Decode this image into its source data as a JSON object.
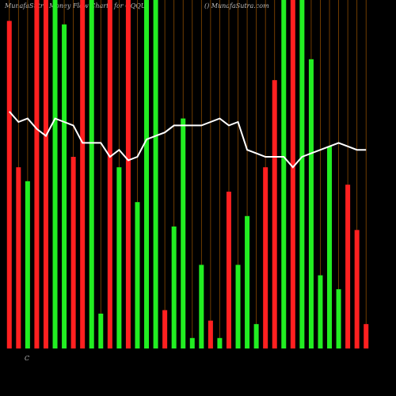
{
  "chart_data": {
    "type": "bar",
    "title": "MunafaSutra Money Flow Charts for QQQU",
    "subtitle": "() MunafaSutra.com",
    "annotation": "C",
    "categories": [
      null,
      null,
      null,
      null,
      null,
      null,
      null,
      null,
      null,
      null,
      null,
      null,
      null,
      null,
      null,
      null,
      null,
      null,
      null,
      null,
      null,
      null,
      null,
      null,
      null,
      null,
      null,
      null,
      null,
      null,
      null,
      null,
      null,
      null,
      null,
      null,
      null,
      null,
      null,
      null
    ],
    "ylim": [
      0,
      100
    ],
    "grid": true,
    "series": [
      {
        "values": [
          94,
          52,
          48,
          100,
          100,
          100,
          93,
          55,
          100,
          100,
          10,
          100,
          52,
          100,
          42,
          100,
          100,
          11,
          35,
          66,
          3,
          24,
          8,
          3,
          45,
          24,
          38,
          7,
          52,
          77,
          100,
          100,
          100,
          83,
          21,
          58,
          17,
          47,
          34,
          7
        ],
        "colors": [
          "#ff2020",
          "#ff2020",
          "#22ee22",
          "#ff2020",
          "#ff2020",
          "#22ee22",
          "#22ee22",
          "#ff2020",
          "#ff2020",
          "#22ee22",
          "#22ee22",
          "#ff2020",
          "#22ee22",
          "#ff2020",
          "#22ee22",
          "#22ee22",
          "#22ee22",
          "#ff2020",
          "#22ee22",
          "#22ee22",
          "#22ee22",
          "#22ee22",
          "#ff2020",
          "#22ee22",
          "#ff2020",
          "#22ee22",
          "#22ee22",
          "#22ee22",
          "#ff2020",
          "#ff2020",
          "#22ee22",
          "#ff2020",
          "#22ee22",
          "#22ee22",
          "#22ee22",
          "#22ee22",
          "#22ee22",
          "#ff2020",
          "#ff2020",
          "#ff2020"
        ]
      },
      {
        "type": "line",
        "color": "#ffffff",
        "values": [
          68,
          65,
          66,
          63,
          61,
          66,
          65,
          64,
          59,
          59,
          59,
          55,
          57,
          54,
          55,
          60,
          61,
          62,
          64,
          64,
          64,
          64,
          65,
          66,
          64,
          65,
          57,
          56,
          55,
          55,
          55,
          52,
          55,
          56,
          57,
          58,
          59,
          58,
          57,
          57
        ]
      }
    ]
  }
}
